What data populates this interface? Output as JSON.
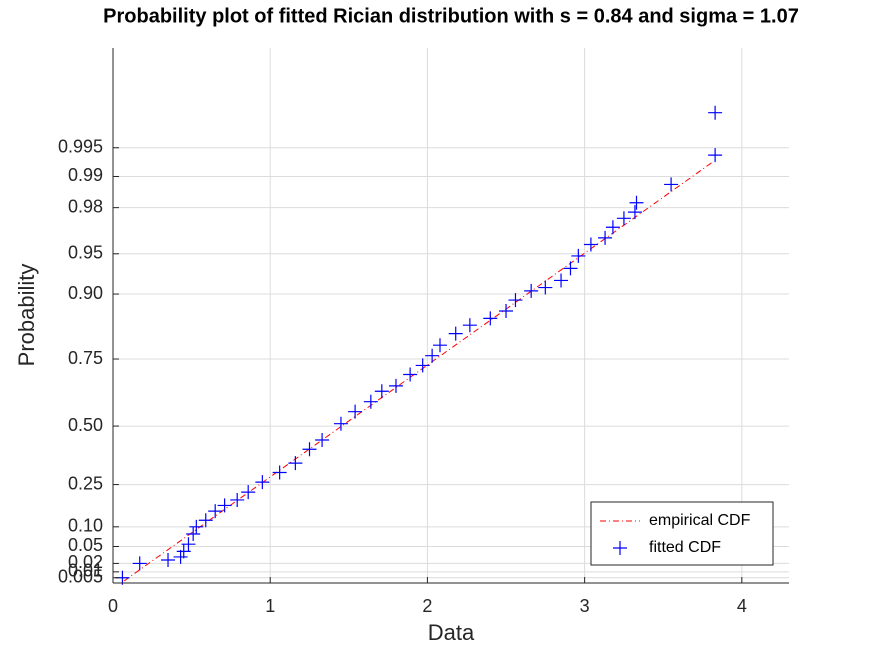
{
  "chart_data": {
    "type": "probability",
    "title": "Probability plot of fitted Rician distribution with s = 0.84 and sigma = 1.07",
    "xlabel": "Data",
    "ylabel": "Probability",
    "distribution": {
      "s": 0.84,
      "sigma": 1.07
    },
    "xlim": [
      0,
      4.3
    ],
    "xticks": [
      0,
      1,
      2,
      3,
      4
    ],
    "ylim": [
      0.002,
      0.9997
    ],
    "yticks": [
      0.005,
      0.01,
      0.02,
      {
        "value": 0.05,
        "label": "0.05"
      },
      {
        "value": 0.1,
        "label": "0.10"
      },
      0.25,
      {
        "value": 0.5,
        "label": "0.50"
      },
      0.75,
      {
        "value": 0.9,
        "label": "0.90"
      },
      0.95,
      0.98,
      0.99,
      0.995
    ],
    "grid": true,
    "legend": "lower right",
    "series": [
      {
        "name": "empirical CDF",
        "color": "#ff0000",
        "x": [
          0.07,
          3.82
        ],
        "values": [
          0.003,
          0.993
        ]
      },
      {
        "name": "fitted CDF",
        "color": "#0000ff",
        "x": [
          0.06,
          0.17,
          0.35,
          0.43,
          0.45,
          0.48,
          0.51,
          0.53,
          0.59,
          0.65,
          0.71,
          0.79,
          0.86,
          0.95,
          1.06,
          1.16,
          1.25,
          1.33,
          1.45,
          1.54,
          1.64,
          1.71,
          1.8,
          1.89,
          1.97,
          2.03,
          2.08,
          2.18,
          2.27,
          2.4,
          2.5,
          2.56,
          2.66,
          2.75,
          2.85,
          2.91,
          2.96,
          3.04,
          3.13,
          3.18,
          3.25,
          3.32,
          3.33,
          3.55,
          3.83,
          3.83
        ],
        "values": [
          0.005,
          0.02,
          0.025,
          0.03,
          0.04,
          0.055,
          0.08,
          0.1,
          0.12,
          0.15,
          0.17,
          0.19,
          0.22,
          0.26,
          0.3,
          0.34,
          0.4,
          0.44,
          0.51,
          0.56,
          0.6,
          0.64,
          0.66,
          0.7,
          0.73,
          0.76,
          0.79,
          0.82,
          0.84,
          0.855,
          0.87,
          0.89,
          0.905,
          0.91,
          0.92,
          0.935,
          0.948,
          0.958,
          0.963,
          0.97,
          0.975,
          0.978,
          0.982,
          0.988,
          0.994,
          0.998
        ]
      }
    ]
  }
}
